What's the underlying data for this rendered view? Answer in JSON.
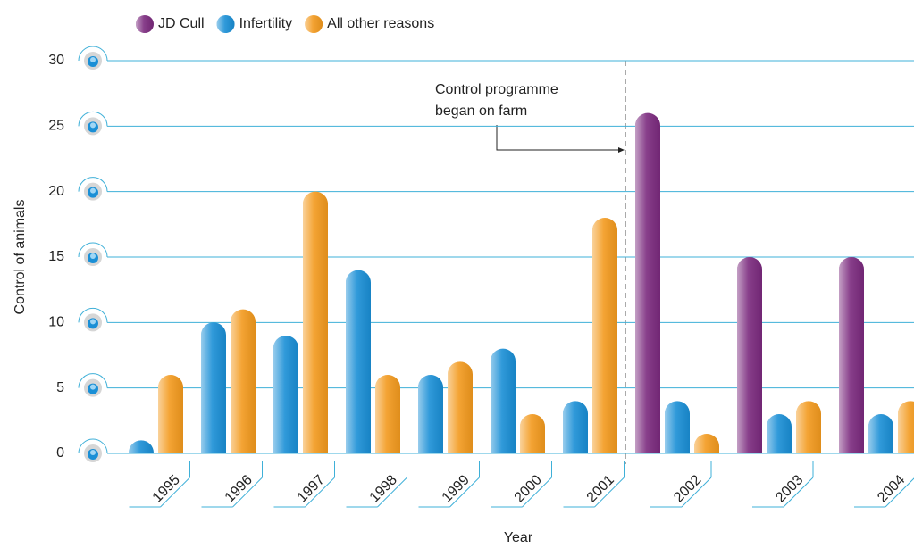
{
  "chart_data": {
    "type": "bar",
    "y_label": "Control of animals",
    "x_label": "Year",
    "annotation": [
      "Control programme",
      "began on farm"
    ],
    "categories": [
      "1995",
      "1996",
      "1997",
      "1998",
      "1999",
      "2000",
      "2001",
      "2002",
      "2003",
      "2004"
    ],
    "series": [
      {
        "name": "JD Cull",
        "color": "#7b2a7e",
        "values": [
          null,
          null,
          null,
          null,
          null,
          null,
          null,
          26,
          15,
          15
        ]
      },
      {
        "name": "Infertility",
        "color": "#1a8fd6",
        "values": [
          1,
          10,
          9,
          14,
          6,
          8,
          4,
          4,
          3,
          3
        ]
      },
      {
        "name": "All other reasons",
        "color": "#f39a1e",
        "values": [
          6,
          11,
          20,
          6,
          7,
          3,
          18,
          1.5,
          4,
          4
        ]
      }
    ],
    "ylim": [
      0,
      30
    ],
    "yticks": [
      0,
      5,
      10,
      15,
      20,
      25,
      30
    ],
    "grid": true,
    "legend": "top"
  }
}
